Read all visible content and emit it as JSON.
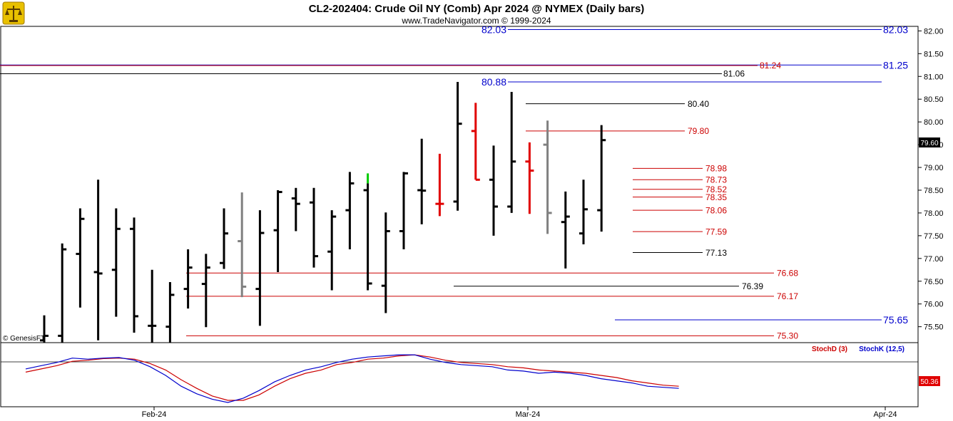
{
  "header": {
    "title": "CL2-202404:  Crude Oil NY (Comb) Apr 2024 @ NYMEX  (Daily bars)",
    "subtitle": "www.TradeNavigator.com © 1999-2024",
    "watermark": "© GenesisFT"
  },
  "colors": {
    "bar_up": "#000000",
    "bar_down_red": "#e00000",
    "bar_gray": "#808080",
    "bar_green": "#00cc00",
    "level_red": "#cc0000",
    "level_blue": "#0000cc",
    "level_black": "#000000",
    "stoch_d": "#cc0000",
    "stoch_k": "#0000cc"
  },
  "chart_data": {
    "type": "ohlc",
    "title": "CL2-202404:  Crude Oil NY (Comb) Apr 2024 @ NYMEX  (Daily bars)",
    "ylim": [
      75.15,
      82.1
    ],
    "y_ticks": [
      "82.00",
      "81.50",
      "81.00",
      "80.50",
      "80.00",
      "79.50",
      "79.00",
      "78.50",
      "78.00",
      "77.50",
      "77.00",
      "76.50",
      "76.00",
      "75.50"
    ],
    "x_ticks": [
      "Feb-24",
      "Mar-24",
      "Apr-24"
    ],
    "last_price": "79.60",
    "bars": [
      {
        "o": 75.2,
        "h": 75.75,
        "l": 75.1,
        "c": 75.3,
        "color": "black"
      },
      {
        "o": 75.3,
        "h": 77.33,
        "l": 75.1,
        "c": 77.2,
        "color": "black"
      },
      {
        "o": 77.1,
        "h": 78.1,
        "l": 75.92,
        "c": 77.87,
        "color": "black"
      },
      {
        "o": 76.7,
        "h": 78.73,
        "l": 75.2,
        "c": 76.67,
        "color": "black"
      },
      {
        "o": 76.75,
        "h": 78.1,
        "l": 75.72,
        "c": 77.65,
        "color": "black"
      },
      {
        "o": 77.65,
        "h": 77.9,
        "l": 75.37,
        "c": 75.73,
        "color": "black"
      },
      {
        "o": 75.52,
        "h": 76.75,
        "l": 75.1,
        "c": 75.52,
        "color": "black"
      },
      {
        "o": 75.5,
        "h": 76.48,
        "l": 75.15,
        "c": 76.2,
        "color": "black"
      },
      {
        "o": 76.33,
        "h": 77.2,
        "l": 75.9,
        "c": 76.8,
        "color": "black"
      },
      {
        "o": 76.44,
        "h": 77.1,
        "l": 75.49,
        "c": 76.8,
        "color": "black"
      },
      {
        "o": 76.9,
        "h": 78.1,
        "l": 76.77,
        "c": 77.55,
        "color": "black"
      },
      {
        "o": 77.38,
        "h": 78.45,
        "l": 76.15,
        "c": 76.38,
        "color": "gray"
      },
      {
        "o": 76.33,
        "h": 78.06,
        "l": 75.52,
        "c": 77.56,
        "color": "black"
      },
      {
        "o": 77.62,
        "h": 78.5,
        "l": 76.7,
        "c": 78.46,
        "color": "black"
      },
      {
        "o": 78.32,
        "h": 78.55,
        "l": 77.6,
        "c": 78.2,
        "color": "black"
      },
      {
        "o": 78.23,
        "h": 78.55,
        "l": 76.8,
        "c": 77.05,
        "color": "black"
      },
      {
        "o": 77.15,
        "h": 78.06,
        "l": 76.3,
        "c": 77.92,
        "color": "black"
      },
      {
        "o": 78.06,
        "h": 78.9,
        "l": 77.2,
        "c": 78.65,
        "color": "black"
      },
      {
        "o": 78.5,
        "h": 78.65,
        "l": 76.3,
        "c": 76.45,
        "color": "green"
      },
      {
        "o": 76.4,
        "h": 78.01,
        "l": 75.8,
        "c": 77.6,
        "color": "black"
      },
      {
        "o": 77.6,
        "h": 78.9,
        "l": 77.2,
        "c": 78.87,
        "color": "black"
      },
      {
        "o": 78.5,
        "h": 79.63,
        "l": 77.75,
        "c": 78.49,
        "color": "black"
      },
      {
        "o": 78.2,
        "h": 79.3,
        "l": 77.93,
        "c": 78.2,
        "color": "red"
      },
      {
        "o": 78.25,
        "h": 80.88,
        "l": 78.05,
        "c": 79.96,
        "color": "black"
      },
      {
        "o": 79.8,
        "h": 80.42,
        "l": 78.73,
        "c": 78.73,
        "color": "red"
      },
      {
        "o": 78.73,
        "h": 79.48,
        "l": 77.5,
        "c": 78.14,
        "color": "black"
      },
      {
        "o": 78.14,
        "h": 80.66,
        "l": 78.0,
        "c": 79.13,
        "color": "black"
      },
      {
        "o": 79.13,
        "h": 79.55,
        "l": 77.98,
        "c": 78.93,
        "color": "red"
      },
      {
        "o": 79.5,
        "h": 80.03,
        "l": 77.54,
        "c": 78.0,
        "color": "gray"
      },
      {
        "o": 77.8,
        "h": 78.47,
        "l": 76.78,
        "c": 77.92,
        "color": "black"
      },
      {
        "o": 77.55,
        "h": 78.73,
        "l": 77.31,
        "c": 78.08,
        "color": "black"
      },
      {
        "o": 78.06,
        "h": 79.93,
        "l": 77.59,
        "c": 79.6,
        "color": "black"
      }
    ],
    "levels": [
      {
        "label": "82.03",
        "value": 82.03,
        "color": "blue",
        "style": "major"
      },
      {
        "label": "81.25",
        "value": 81.25,
        "color": "blue",
        "style": "major"
      },
      {
        "label": "81.24",
        "value": 81.24,
        "color": "red",
        "style": "minor"
      },
      {
        "label": "81.06",
        "value": 81.06,
        "color": "black",
        "style": "minor"
      },
      {
        "label": "80.88",
        "value": 80.88,
        "color": "blue",
        "style": "major"
      },
      {
        "label": "80.40",
        "value": 80.4,
        "color": "black",
        "style": "minor"
      },
      {
        "label": "79.80",
        "value": 79.8,
        "color": "red",
        "style": "minor"
      },
      {
        "label": "78.98",
        "value": 78.98,
        "color": "red",
        "style": "minor"
      },
      {
        "label": "78.73",
        "value": 78.73,
        "color": "red",
        "style": "minor"
      },
      {
        "label": "78.52",
        "value": 78.52,
        "color": "red",
        "style": "minor"
      },
      {
        "label": "78.35",
        "value": 78.35,
        "color": "red",
        "style": "minor"
      },
      {
        "label": "78.06",
        "value": 78.06,
        "color": "red",
        "style": "minor"
      },
      {
        "label": "77.59",
        "value": 77.59,
        "color": "red",
        "style": "minor"
      },
      {
        "label": "77.13",
        "value": 77.13,
        "color": "black",
        "style": "minor"
      },
      {
        "label": "76.68",
        "value": 76.68,
        "color": "red",
        "style": "minor"
      },
      {
        "label": "76.39",
        "value": 76.39,
        "color": "black",
        "style": "minor"
      },
      {
        "label": "76.17",
        "value": 76.17,
        "color": "red",
        "style": "minor"
      },
      {
        "label": "75.65",
        "value": 75.65,
        "color": "blue",
        "style": "major"
      },
      {
        "label": "75.30",
        "value": 75.3,
        "color": "red",
        "style": "minor"
      }
    ],
    "stochastic": {
      "d_label": "StochD (3)",
      "k_label": "StochK (12,5)",
      "last_value": "50.36",
      "ylim": [
        0,
        100
      ],
      "k": [
        62,
        68,
        74,
        82,
        80,
        82,
        83,
        78,
        66,
        50,
        30,
        16,
        6,
        0,
        8,
        22,
        38,
        50,
        60,
        66,
        74,
        80,
        84,
        86,
        88,
        88,
        80,
        74,
        70,
        68,
        66,
        60,
        58,
        54,
        56,
        54,
        50,
        44,
        40,
        36,
        30,
        28,
        26
      ],
      "d": [
        56,
        62,
        68,
        76,
        78,
        81,
        82,
        80,
        72,
        60,
        42,
        26,
        12,
        4,
        4,
        14,
        30,
        44,
        54,
        60,
        70,
        74,
        80,
        82,
        86,
        88,
        84,
        78,
        74,
        72,
        70,
        66,
        64,
        60,
        58,
        56,
        54,
        50,
        46,
        40,
        36,
        32,
        30
      ]
    }
  }
}
